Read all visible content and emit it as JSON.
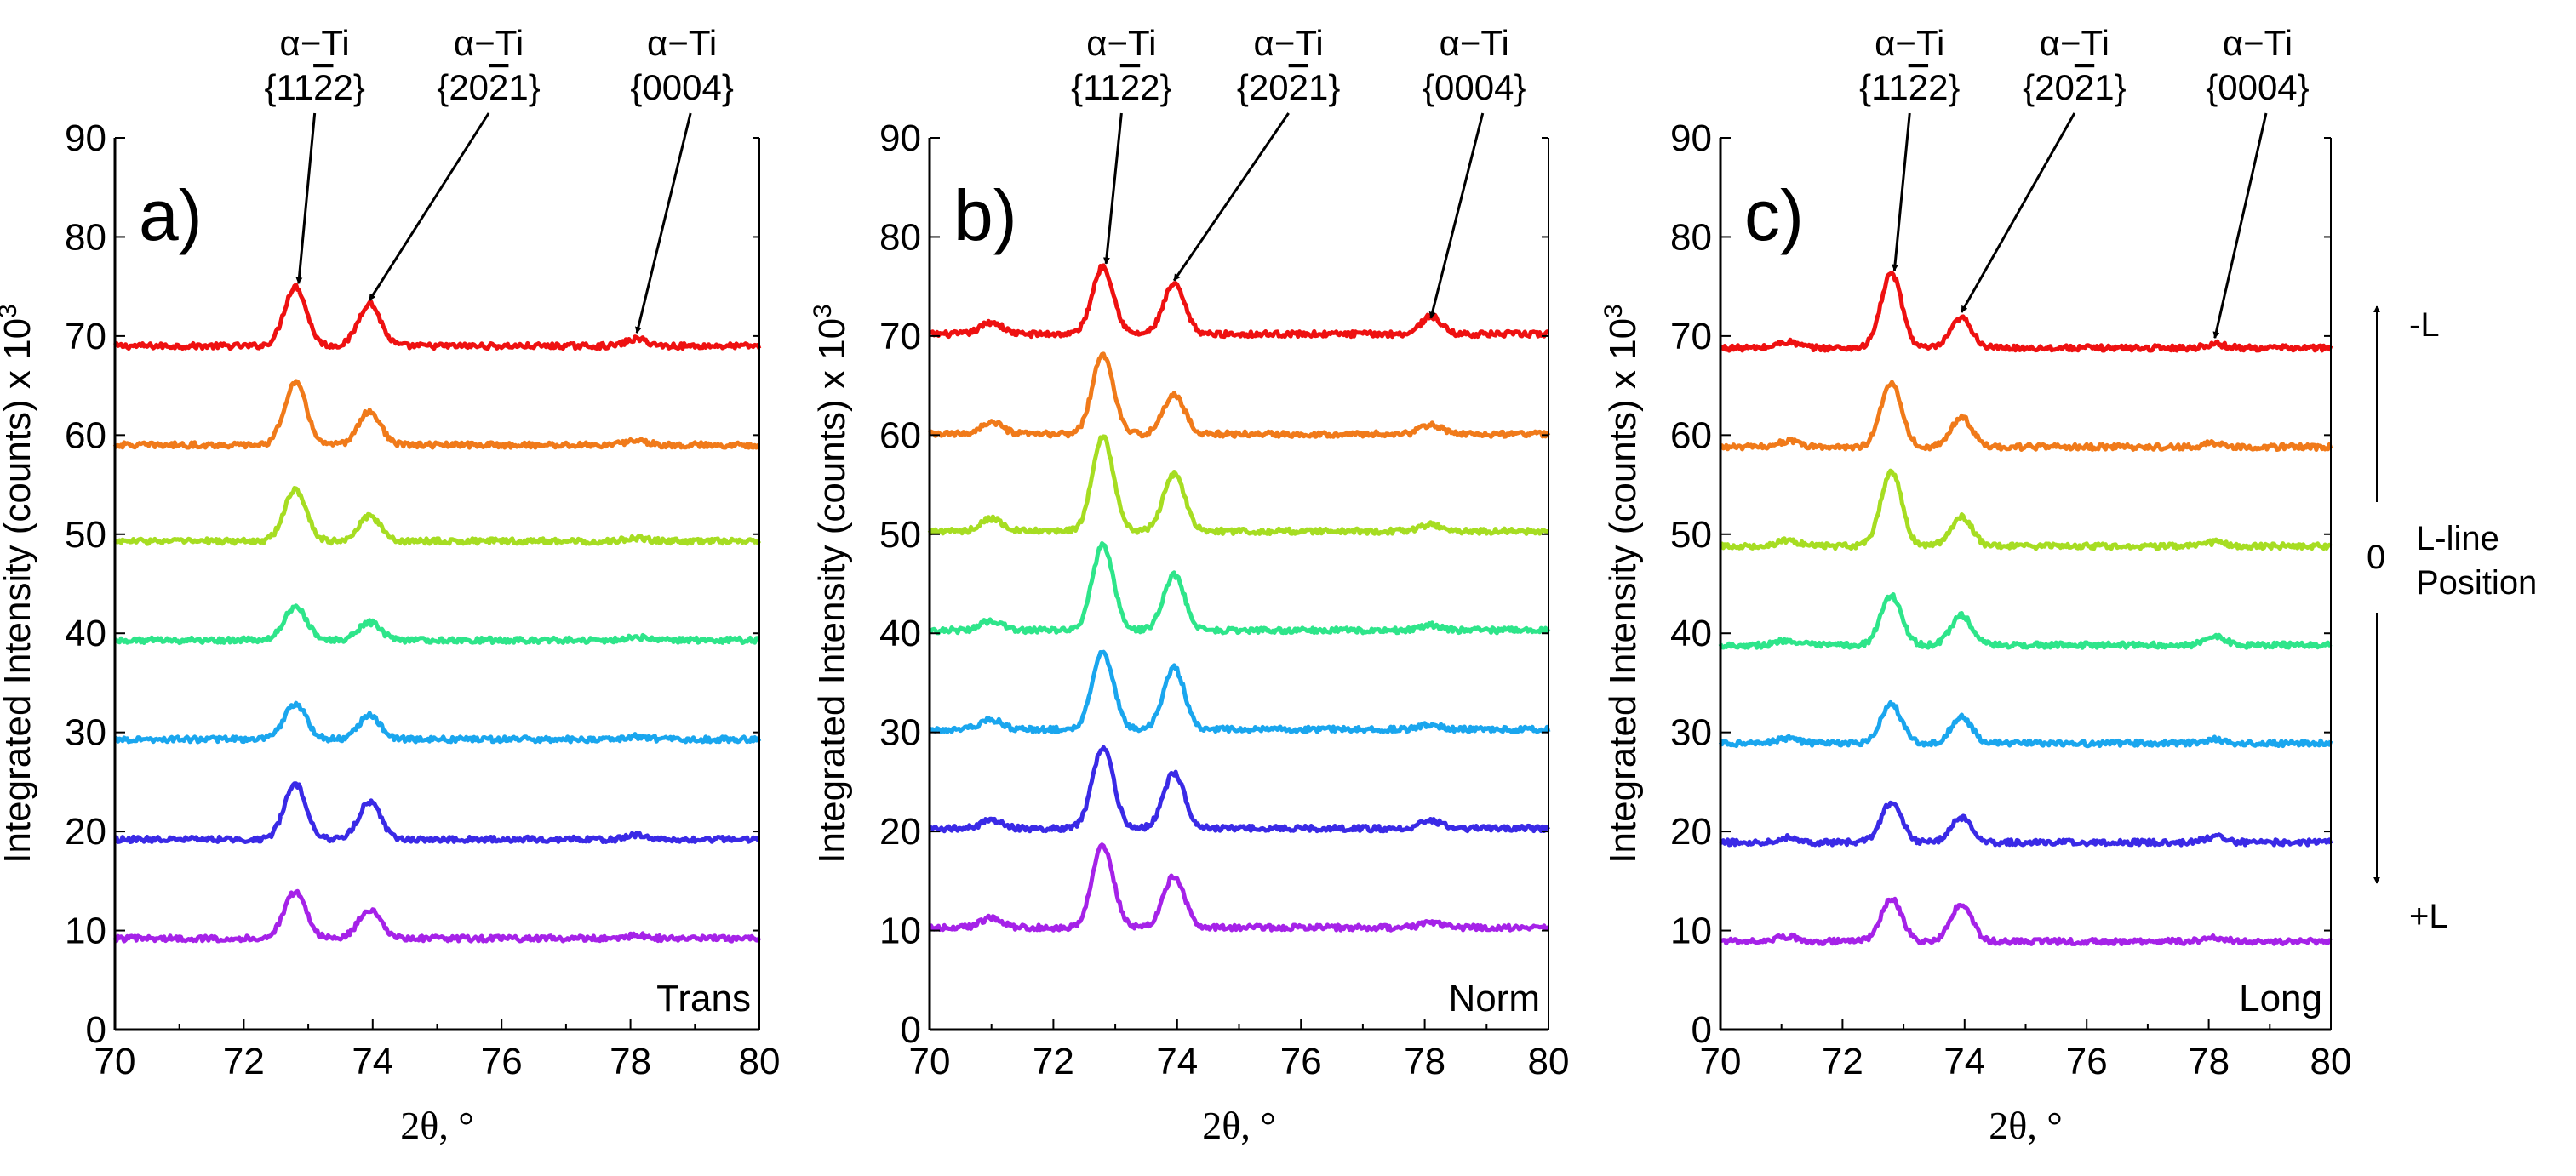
{
  "chart_data": [
    {
      "type": "line",
      "panel_label": "a)",
      "condition_label": "Trans",
      "xlabel": "2θ, °",
      "ylabel": "Integrated Intensity (counts) x 10",
      "ylabel_superscript": "3",
      "xlim": [
        70,
        80
      ],
      "ylim": [
        0,
        90
      ],
      "x_ticks": [
        "70",
        "72",
        "74",
        "76",
        "78",
        "80"
      ],
      "y_ticks": [
        "0",
        "10",
        "20",
        "30",
        "40",
        "50",
        "60",
        "70",
        "80",
        "90"
      ],
      "peak_annotations": [
        {
          "phase": "α−Ti",
          "plane": "{11",
          "bar": "2",
          "rest": "2}",
          "x": 72.85,
          "tip_y": 75.3
        },
        {
          "phase": "α−Ti",
          "plane": "{20",
          "bar": "2",
          "rest": "1}",
          "x": 73.95,
          "tip_y": 73.6
        },
        {
          "phase": "α−Ti",
          "plane": "{0004}",
          "bar": "",
          "rest": "",
          "x": 78.1,
          "tip_y": 70.3
        }
      ],
      "series": [
        {
          "baseline": 69,
          "peaks": [
            [
              72.8,
              6
            ],
            [
              73.95,
              4.3
            ],
            [
              78.1,
              0.7
            ]
          ]
        },
        {
          "baseline": 59,
          "peaks": [
            [
              72.8,
              6.3
            ],
            [
              73.95,
              3.4
            ],
            [
              78.1,
              0.5
            ]
          ]
        },
        {
          "baseline": 49.3,
          "peaks": [
            [
              72.8,
              5.2
            ],
            [
              73.95,
              2.5
            ],
            [
              78.1,
              0.3
            ]
          ]
        },
        {
          "baseline": 39.3,
          "peaks": [
            [
              72.8,
              3.4
            ],
            [
              73.95,
              1.8
            ],
            [
              78.1,
              0.3
            ]
          ]
        },
        {
          "baseline": 29.3,
          "peaks": [
            [
              72.8,
              3.6
            ],
            [
              73.95,
              2.4
            ],
            [
              78.1,
              0.3
            ]
          ]
        },
        {
          "baseline": 19.2,
          "peaks": [
            [
              72.8,
              5.6
            ],
            [
              73.95,
              3.8
            ],
            [
              78.1,
              0.4
            ]
          ]
        },
        {
          "baseline": 9.2,
          "peaks": [
            [
              72.8,
              4.7
            ],
            [
              73.95,
              2.9
            ],
            [
              78.1,
              0.3
            ]
          ]
        }
      ]
    },
    {
      "type": "line",
      "panel_label": "b)",
      "condition_label": "Norm",
      "xlabel": "2θ, °",
      "ylabel": "Integrated Intensity (counts) x 10",
      "ylabel_superscript": "3",
      "xlim": [
        70,
        80
      ],
      "ylim": [
        0,
        90
      ],
      "x_ticks": [
        "70",
        "72",
        "74",
        "76",
        "78",
        "80"
      ],
      "y_ticks": [
        "0",
        "10",
        "20",
        "30",
        "40",
        "50",
        "60",
        "70",
        "80",
        "90"
      ],
      "peak_annotations": [
        {
          "phase": "α−Ti",
          "plane": "{11",
          "bar": "2",
          "rest": "2}",
          "x": 72.85,
          "tip_y": 77.3
        },
        {
          "phase": "α−Ti",
          "plane": "{20",
          "bar": "2",
          "rest": "1}",
          "x": 73.95,
          "tip_y": 75.6
        },
        {
          "phase": "α−Ti",
          "plane": "{0004}",
          "bar": "",
          "rest": "",
          "x": 78.1,
          "tip_y": 71.8
        }
      ],
      "series": [
        {
          "baseline": 70.2,
          "peaks": [
            [
              71,
              1.2
            ],
            [
              72.8,
              6.8
            ],
            [
              73.95,
              5
            ],
            [
              78.1,
              1.8
            ]
          ]
        },
        {
          "baseline": 60.1,
          "peaks": [
            [
              71,
              1.2
            ],
            [
              72.8,
              8
            ],
            [
              73.95,
              4
            ],
            [
              78.1,
              1
            ]
          ]
        },
        {
          "baseline": 50.3,
          "peaks": [
            [
              71,
              1.3
            ],
            [
              72.8,
              9.5
            ],
            [
              73.95,
              5.8
            ],
            [
              78.1,
              0.7
            ]
          ]
        },
        {
          "baseline": 40.3,
          "peaks": [
            [
              71,
              1
            ],
            [
              72.8,
              8.6
            ],
            [
              73.95,
              5.6
            ],
            [
              78.1,
              0.5
            ]
          ]
        },
        {
          "baseline": 30.3,
          "peaks": [
            [
              71,
              1
            ],
            [
              72.8,
              7.8
            ],
            [
              73.95,
              6.2
            ],
            [
              78.1,
              0.5
            ]
          ]
        },
        {
          "baseline": 20.3,
          "peaks": [
            [
              71,
              0.8
            ],
            [
              72.8,
              8.2
            ],
            [
              73.95,
              5.6
            ],
            [
              78.1,
              0.8
            ]
          ]
        },
        {
          "baseline": 10.3,
          "peaks": [
            [
              71,
              1
            ],
            [
              72.8,
              8.3
            ],
            [
              73.95,
              5.2
            ],
            [
              78.1,
              0.5
            ]
          ]
        }
      ]
    },
    {
      "type": "line",
      "panel_label": "c)",
      "condition_label": "Long",
      "xlabel": "2θ, °",
      "ylabel": "Integrated Intensity (counts) x 10",
      "ylabel_superscript": "3",
      "xlim": [
        70,
        80
      ],
      "ylim": [
        0,
        90
      ],
      "x_ticks": [
        "70",
        "72",
        "74",
        "76",
        "78",
        "80"
      ],
      "y_ticks": [
        "0",
        "10",
        "20",
        "30",
        "40",
        "50",
        "60",
        "70",
        "80",
        "90"
      ],
      "peak_annotations": [
        {
          "phase": "α−Ti",
          "plane": "{11",
          "bar": "2",
          "rest": "2}",
          "x": 72.85,
          "tip_y": 76.6
        },
        {
          "phase": "α−Ti",
          "plane": "{20",
          "bar": "2",
          "rest": "1}",
          "x": 73.95,
          "tip_y": 72.4
        },
        {
          "phase": "α−Ti",
          "plane": "{0004}",
          "bar": "",
          "rest": "",
          "x": 78.1,
          "tip_y": 69.8
        }
      ],
      "series": [
        {
          "baseline": 68.8,
          "peaks": [
            [
              71.1,
              0.6
            ],
            [
              72.8,
              7.5
            ],
            [
              73.95,
              3
            ],
            [
              78.1,
              0.4
            ]
          ]
        },
        {
          "baseline": 58.8,
          "peaks": [
            [
              71.1,
              0.6
            ],
            [
              72.8,
              6.5
            ],
            [
              73.95,
              3
            ],
            [
              78.1,
              0.4
            ]
          ]
        },
        {
          "baseline": 48.8,
          "peaks": [
            [
              71.1,
              0.6
            ],
            [
              72.8,
              7.5
            ],
            [
              73.95,
              3
            ],
            [
              78.1,
              0.4
            ]
          ]
        },
        {
          "baseline": 38.8,
          "peaks": [
            [
              71.1,
              0.5
            ],
            [
              72.8,
              5
            ],
            [
              73.95,
              3
            ],
            [
              78.1,
              1
            ]
          ]
        },
        {
          "baseline": 28.9,
          "peaks": [
            [
              71.1,
              0.5
            ],
            [
              72.8,
              3.9
            ],
            [
              73.95,
              2.6
            ],
            [
              78.1,
              0.4
            ]
          ]
        },
        {
          "baseline": 18.9,
          "peaks": [
            [
              71.1,
              0.5
            ],
            [
              72.8,
              4
            ],
            [
              73.95,
              2.5
            ],
            [
              78.1,
              0.6
            ]
          ]
        },
        {
          "baseline": 8.9,
          "peaks": [
            [
              71.1,
              0.5
            ],
            [
              72.8,
              4.3
            ],
            [
              73.95,
              3.8
            ],
            [
              78.1,
              0.4
            ]
          ]
        }
      ]
    }
  ],
  "series_colors": [
    "#ee1111",
    "#f07a1a",
    "#a6dd22",
    "#2ee58a",
    "#1aa6ee",
    "#3a2ae6",
    "#a522e8"
  ],
  "position_indicator": {
    "top_label": "-L",
    "center_value": "0",
    "center_label_line1": "L-line",
    "center_label_line2": "Position",
    "bottom_label": "+L"
  }
}
